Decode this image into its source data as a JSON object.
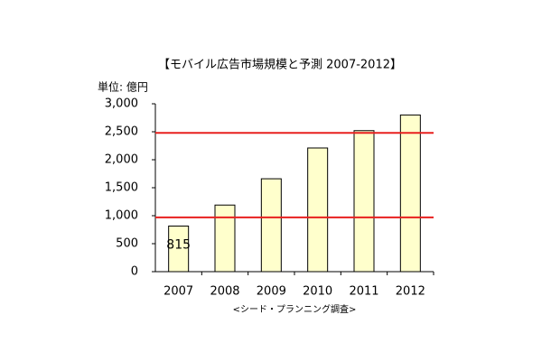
{
  "chart_data": {
    "type": "bar",
    "title": "【モバイル広告市場規模と予測 2007-2012】",
    "y_label": "単位: 億円",
    "source": "<シード・プランニング調査>",
    "categories": [
      "2007",
      "2008",
      "2009",
      "2010",
      "2011",
      "2012"
    ],
    "values": [
      815,
      1190,
      1660,
      2210,
      2520,
      2800
    ],
    "labeled_points": [
      0
    ],
    "color": "#ffffcc",
    "ylim": [
      0,
      3000
    ],
    "yticks": [
      0,
      500,
      {
        "value": 1000,
        "label": "1,000"
      },
      {
        "value": 1500,
        "label": "1,500"
      },
      {
        "value": 2000,
        "label": "2,000"
      },
      {
        "value": 2500,
        "label": "2,500"
      },
      {
        "value": 3000,
        "label": "3,000"
      }
    ],
    "reference_lines": [
      970,
      2480
    ],
    "reference_color": "#e8201f",
    "grid": false
  }
}
